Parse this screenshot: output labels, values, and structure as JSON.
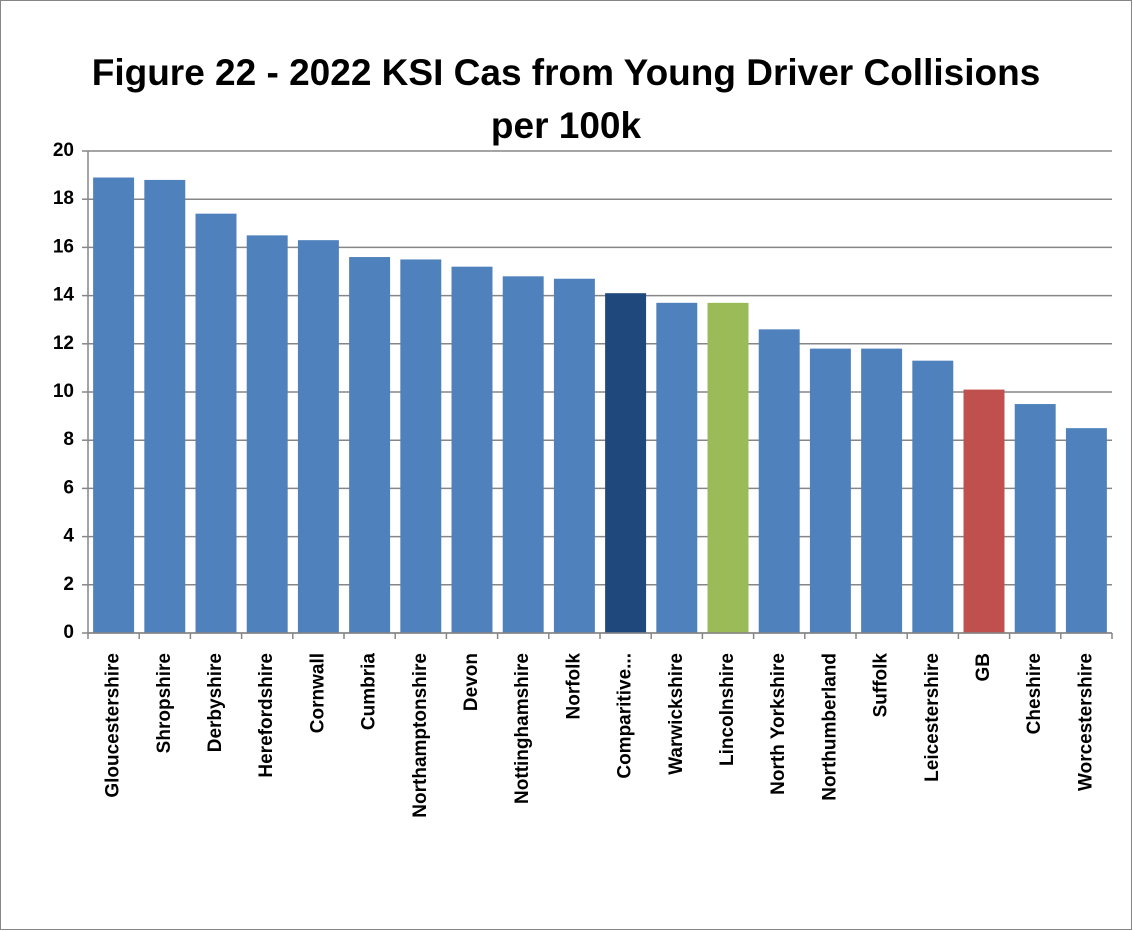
{
  "chart_data": {
    "type": "bar",
    "title": "Figure 22 - 2022 KSI Cas from Young Driver Collisions per 100k",
    "categories": [
      "Gloucestershire",
      "Shropshire",
      "Derbyshire",
      "Herefordshire",
      "Cornwall",
      "Cumbria",
      "Northamptonshire",
      "Devon",
      "Nottinghamshire",
      "Norfolk",
      "Comparitive...",
      "Warwickshire",
      "Lincolnshire",
      "North Yorkshire",
      "Northumberland",
      "Suffolk",
      "Leicestershire",
      "GB",
      "Cheshire",
      "Worcestershire"
    ],
    "values": [
      18.9,
      18.8,
      17.4,
      16.5,
      16.3,
      15.6,
      15.5,
      15.2,
      14.8,
      14.7,
      14.1,
      13.7,
      13.7,
      12.6,
      11.8,
      11.8,
      11.3,
      10.1,
      9.5,
      8.5
    ],
    "colors": [
      "#4f81bd",
      "#4f81bd",
      "#4f81bd",
      "#4f81bd",
      "#4f81bd",
      "#4f81bd",
      "#4f81bd",
      "#4f81bd",
      "#4f81bd",
      "#4f81bd",
      "#1f497d",
      "#4f81bd",
      "#9bbb59",
      "#4f81bd",
      "#4f81bd",
      "#4f81bd",
      "#4f81bd",
      "#c0504d",
      "#4f81bd",
      "#4f81bd"
    ],
    "ylim": [
      0,
      20
    ],
    "yticks": [
      0,
      2,
      4,
      6,
      8,
      10,
      12,
      14,
      16,
      18,
      20
    ],
    "grid": true
  }
}
